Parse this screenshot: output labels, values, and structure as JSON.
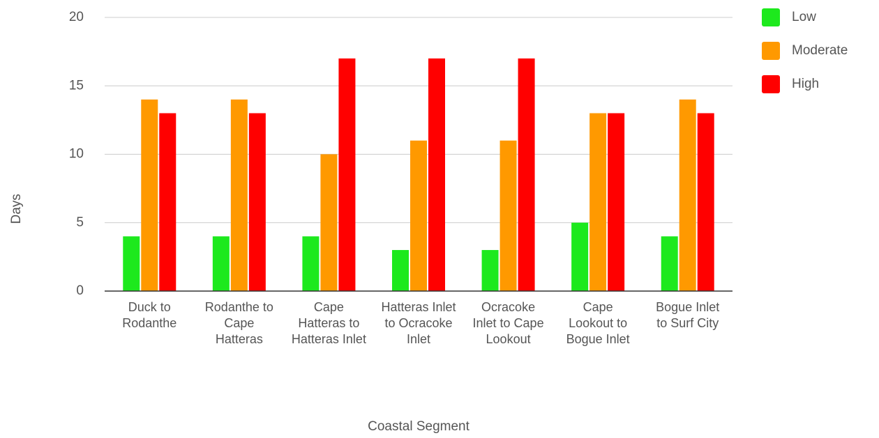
{
  "chart_data": {
    "type": "bar",
    "x_label": "Coastal Segment",
    "y_label": "Days",
    "categories": [
      "Duck to Rodanthe",
      "Rodanthe to Cape Hatteras",
      "Cape Hatteras to Hatteras Inlet",
      "Hatteras Inlet to Ocracoke Inlet",
      "Ocracoke Inlet to Cape Lookout",
      "Cape Lookout to Bogue Inlet",
      "Bogue Inlet to Surf City"
    ],
    "series": [
      {
        "name": "Low",
        "color": "#1de91d",
        "values": [
          4,
          4,
          4,
          3,
          3,
          5,
          4
        ]
      },
      {
        "name": "Moderate",
        "color": "#ff9900",
        "values": [
          14,
          14,
          10,
          11,
          11,
          13,
          14
        ]
      },
      {
        "name": "High",
        "color": "#ff0000",
        "values": [
          13,
          13,
          17,
          17,
          17,
          13,
          13
        ]
      }
    ],
    "ylim": [
      0,
      20
    ],
    "yticks": [
      0,
      5,
      10,
      15,
      20
    ],
    "grid": true,
    "legend": "right"
  }
}
